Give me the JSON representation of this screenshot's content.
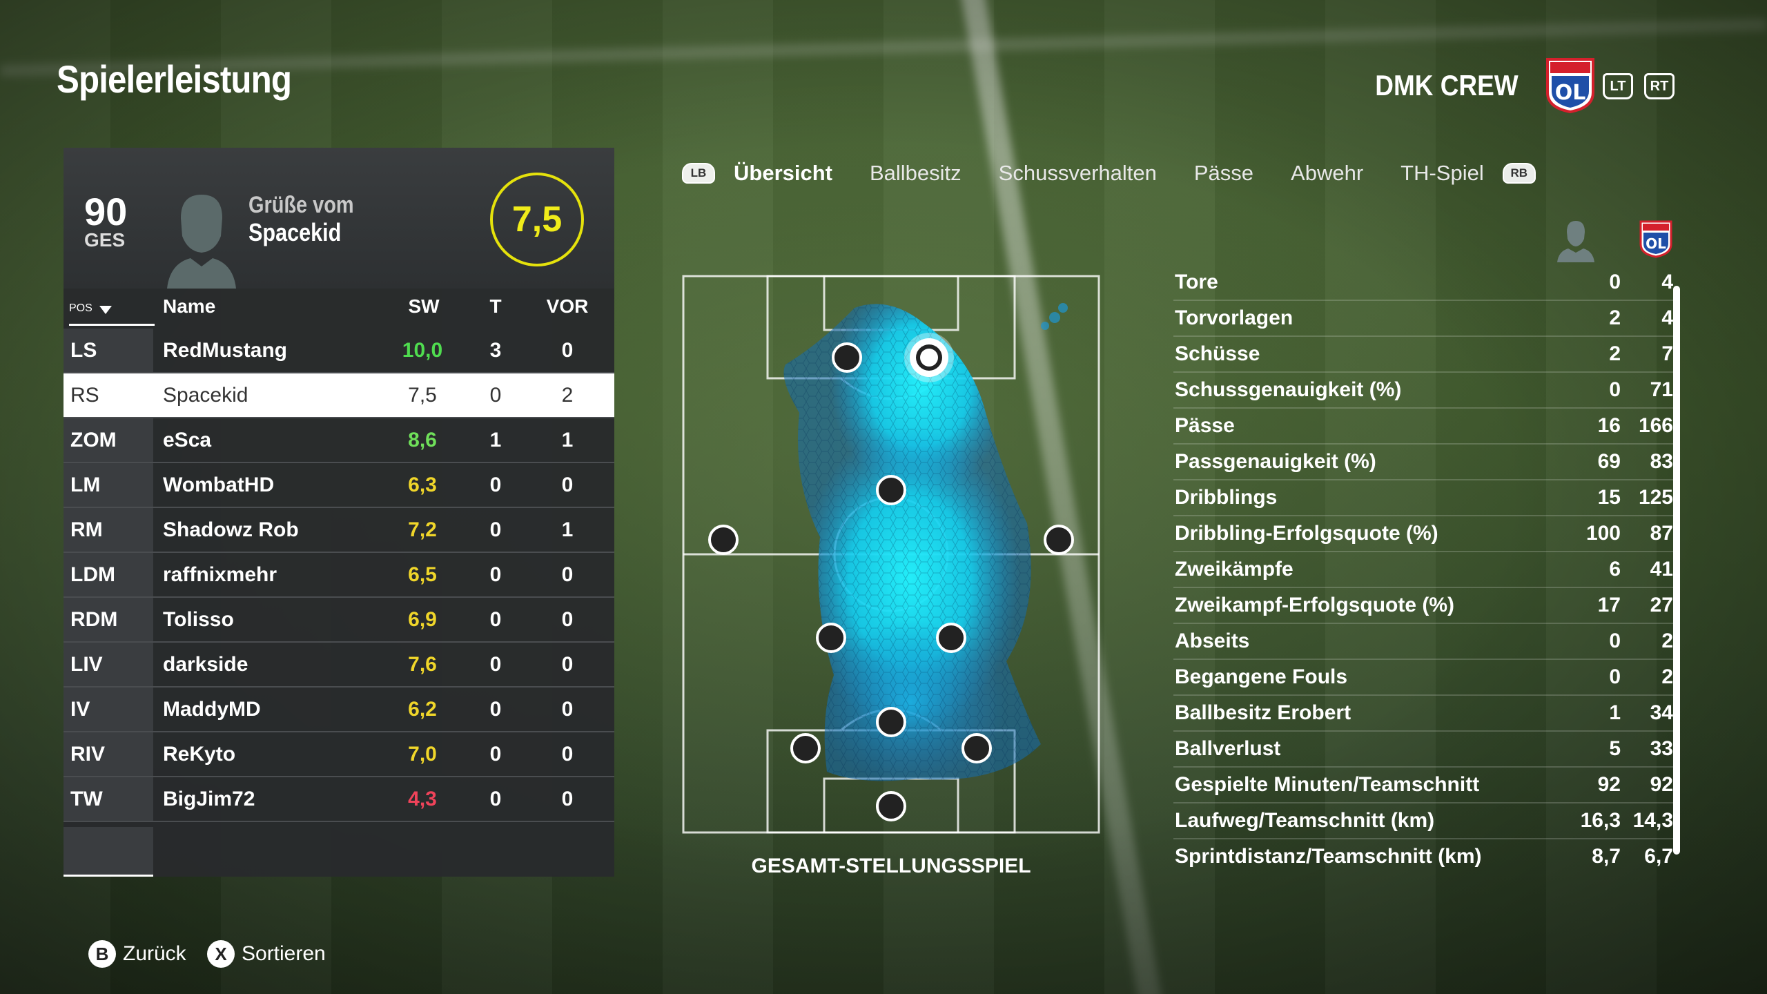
{
  "header": {
    "title": "Spielerleistung",
    "team_name": "DMK CREW",
    "crest_text": "OL",
    "crest_label": "OLYMPIQUE LYONNAIS",
    "lt_label": "LT",
    "rt_label": "RT"
  },
  "player_card": {
    "overall": "90",
    "overall_label": "GES",
    "greeting_line1": "Grüße vom",
    "greeting_line2": "Spacekid",
    "match_rating": "7,5"
  },
  "table": {
    "headers": {
      "pos": "POS",
      "name": "Name",
      "sw": "SW",
      "t": "T",
      "vor": "VOR"
    },
    "rows": [
      {
        "pos": "LS",
        "name": "RedMustang",
        "sw": "10,0",
        "t": "3",
        "vor": "0",
        "color": "#4fdc4f"
      },
      {
        "pos": "RS",
        "name": "Spacekid",
        "sw": "7,5",
        "t": "0",
        "vor": "2",
        "color": "#333333"
      },
      {
        "pos": "ZOM",
        "name": "eSca",
        "sw": "8,6",
        "t": "1",
        "vor": "1",
        "color": "#6fe05a"
      },
      {
        "pos": "LM",
        "name": "WombatHD",
        "sw": "6,3",
        "t": "0",
        "vor": "0",
        "color": "#f0d62a"
      },
      {
        "pos": "RM",
        "name": "Shadowz Rob",
        "sw": "7,2",
        "t": "0",
        "vor": "1",
        "color": "#f0d62a"
      },
      {
        "pos": "LDM",
        "name": "raffnixmehr",
        "sw": "6,5",
        "t": "0",
        "vor": "0",
        "color": "#f0d62a"
      },
      {
        "pos": "RDM",
        "name": "Tolisso",
        "sw": "6,9",
        "t": "0",
        "vor": "0",
        "color": "#f0d62a"
      },
      {
        "pos": "LIV",
        "name": "darkside",
        "sw": "7,6",
        "t": "0",
        "vor": "0",
        "color": "#f0d62a"
      },
      {
        "pos": "IV",
        "name": "MaddyMD",
        "sw": "6,2",
        "t": "0",
        "vor": "0",
        "color": "#f0d62a"
      },
      {
        "pos": "RIV",
        "name": "ReKyto",
        "sw": "7,0",
        "t": "0",
        "vor": "0",
        "color": "#f0d62a"
      },
      {
        "pos": "TW",
        "name": "BigJim72",
        "sw": "4,3",
        "t": "0",
        "vor": "0",
        "color": "#f0435a"
      }
    ]
  },
  "tabs": {
    "lb": "LB",
    "rb": "RB",
    "items": [
      "Übersicht",
      "Ballbesitz",
      "Schussverhalten",
      "Pässe",
      "Abwehr",
      "TH-Spiel"
    ],
    "active_index": 0
  },
  "pitch": {
    "caption": "GESAMT-STELLUNGSSPIEL"
  },
  "stats": [
    {
      "label": "Tore",
      "player": "0",
      "team": "4"
    },
    {
      "label": "Torvorlagen",
      "player": "2",
      "team": "4"
    },
    {
      "label": "Schüsse",
      "player": "2",
      "team": "7"
    },
    {
      "label": "Schussgenauigkeit (%)",
      "player": "0",
      "team": "71"
    },
    {
      "label": "Pässe",
      "player": "16",
      "team": "166"
    },
    {
      "label": "Passgenauigkeit (%)",
      "player": "69",
      "team": "83"
    },
    {
      "label": "Dribblings",
      "player": "15",
      "team": "125"
    },
    {
      "label": "Dribbling-Erfolgsquote (%)",
      "player": "100",
      "team": "87"
    },
    {
      "label": "Zweikämpfe",
      "player": "6",
      "team": "41"
    },
    {
      "label": "Zweikampf-Erfolgsquote (%)",
      "player": "17",
      "team": "27"
    },
    {
      "label": "Abseits",
      "player": "0",
      "team": "2"
    },
    {
      "label": "Begangene Fouls",
      "player": "0",
      "team": "2"
    },
    {
      "label": "Ballbesitz Erobert",
      "player": "1",
      "team": "34"
    },
    {
      "label": "Ballverlust",
      "player": "5",
      "team": "33"
    },
    {
      "label": "Gespielte Minuten/Teamschnitt",
      "player": "92",
      "team": "92"
    },
    {
      "label": "Laufweg/Teamschnitt (km)",
      "player": "16,3",
      "team": "14,3"
    },
    {
      "label": "Sprintdistanz/Teamschnitt (km)",
      "player": "8,7",
      "team": "6,7"
    }
  ],
  "footer": {
    "back_key": "B",
    "back_label": "Zurück",
    "sort_key": "X",
    "sort_label": "Sortieren"
  },
  "colors": {
    "rating_ring": "#e5e20c",
    "heatmap": "#1ee6ff",
    "crest_blue": "#1f4fa8",
    "crest_red": "#d4202c"
  }
}
